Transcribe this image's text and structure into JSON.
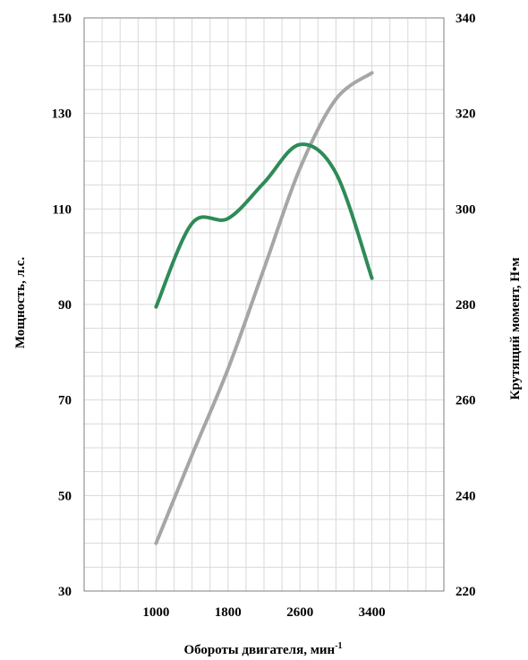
{
  "chart_data": {
    "type": "line",
    "xlabel": "Обороты двигателя, мин",
    "xlabel_sup": "-1",
    "ylabel_left": "Мощность, л.с.",
    "ylabel_right": "Крутящий момент, Н•м",
    "x_ticks": [
      "1000",
      "1800",
      "2600",
      "3400"
    ],
    "y_left_ticks": [
      "30",
      "50",
      "70",
      "90",
      "110",
      "130",
      "150"
    ],
    "y_right_ticks": [
      "220",
      "240",
      "260",
      "280",
      "300",
      "320",
      "340"
    ],
    "xlim": [
      200,
      4200
    ],
    "ylim_left": [
      30,
      150
    ],
    "ylim_right": [
      220,
      340
    ],
    "grid": true,
    "series": [
      {
        "axis": "left",
        "color": "#a6a6a6",
        "x": [
          1000,
          1400,
          1800,
          2200,
          2600,
          3000,
          3400
        ],
        "y": [
          40,
          58.5,
          76.5,
          97.5,
          118.5,
          133,
          138.5
        ]
      },
      {
        "axis": "right",
        "color": "#2e8b57",
        "x": [
          1000,
          1400,
          1800,
          2200,
          2600,
          3000,
          3400
        ],
        "y": [
          279.5,
          297,
          298,
          305.5,
          313.5,
          307.5,
          285.5
        ]
      }
    ]
  }
}
